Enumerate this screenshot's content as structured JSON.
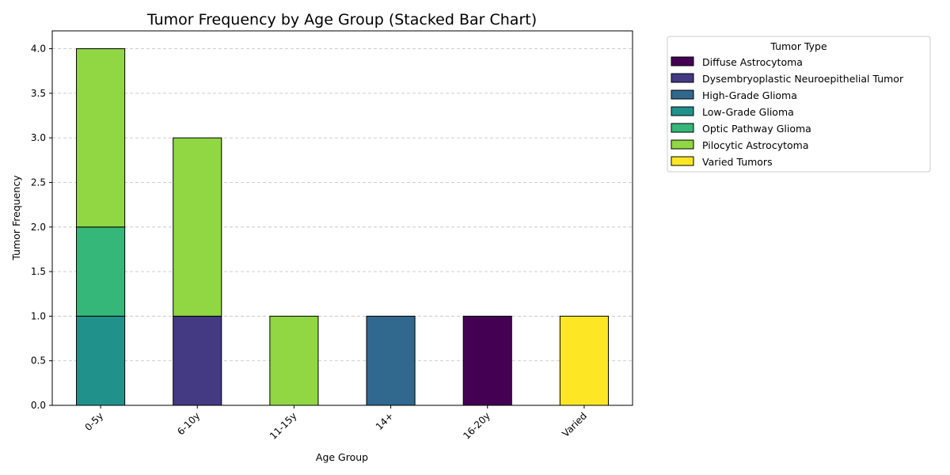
{
  "chart_data": {
    "type": "bar",
    "stacked": true,
    "title": "Tumor Frequency by Age Group (Stacked Bar Chart)",
    "xlabel": "Age Group",
    "ylabel": "Tumor Frequency",
    "categories": [
      "0-5y",
      "6-10y",
      "11-15y",
      "14+",
      "16-20y",
      "Varied"
    ],
    "ylim": [
      0,
      4.2
    ],
    "yticks": [
      "0.0",
      "0.5",
      "1.0",
      "1.5",
      "2.0",
      "2.5",
      "3.0",
      "3.5",
      "4.0"
    ],
    "grid": "y-dashed",
    "legend": {
      "title": "Tumor Type",
      "placement": "outside-right"
    },
    "series": [
      {
        "name": "Diffuse Astrocytoma",
        "color": "#440154",
        "values": [
          0,
          0,
          0,
          0,
          1,
          0
        ]
      },
      {
        "name": "Dysembryoplastic Neuroepithelial Tumor",
        "color": "#443983",
        "values": [
          0,
          1,
          0,
          0,
          0,
          0
        ]
      },
      {
        "name": "High-Grade Glioma",
        "color": "#31688e",
        "values": [
          0,
          0,
          0,
          1,
          0,
          0
        ]
      },
      {
        "name": "Low-Grade Glioma",
        "color": "#21918c",
        "values": [
          1,
          0,
          0,
          0,
          0,
          0
        ]
      },
      {
        "name": "Optic Pathway Glioma",
        "color": "#35b779",
        "values": [
          1,
          0,
          0,
          0,
          0,
          0
        ]
      },
      {
        "name": "Pilocytic Astrocytoma",
        "color": "#90d743",
        "values": [
          2,
          2,
          1,
          0,
          0,
          0
        ]
      },
      {
        "name": "Varied Tumors",
        "color": "#fde725",
        "values": [
          0,
          0,
          0,
          0,
          0,
          1
        ]
      }
    ]
  }
}
